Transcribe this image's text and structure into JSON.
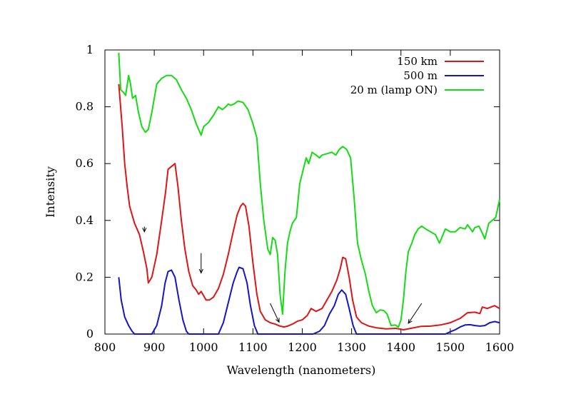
{
  "chart_data": {
    "type": "line",
    "title": "",
    "xlabel": "Wavelength (nanometers)",
    "ylabel": "Intensity",
    "xlim": [
      800,
      1600
    ],
    "ylim": [
      0,
      1
    ],
    "xticks": [
      800,
      900,
      1000,
      1100,
      1200,
      1300,
      1400,
      1500,
      1600
    ],
    "yticks": [
      0,
      0.2,
      0.4,
      0.6,
      0.8,
      1
    ],
    "ytick_labels": [
      "0",
      "0.2",
      "0.4",
      "0.6",
      "0.8",
      "1"
    ],
    "legend_position": "top-right",
    "series": [
      {
        "name": "150 km",
        "color": "#e01414",
        "points": [
          [
            828,
            0.88
          ],
          [
            835,
            0.73
          ],
          [
            840,
            0.6
          ],
          [
            845,
            0.52
          ],
          [
            850,
            0.45
          ],
          [
            855,
            0.42
          ],
          [
            860,
            0.39
          ],
          [
            870,
            0.35
          ],
          [
            878,
            0.29
          ],
          [
            885,
            0.23
          ],
          [
            888,
            0.18
          ],
          [
            895,
            0.2
          ],
          [
            905,
            0.28
          ],
          [
            915,
            0.4
          ],
          [
            923,
            0.5
          ],
          [
            928,
            0.58
          ],
          [
            935,
            0.59
          ],
          [
            942,
            0.6
          ],
          [
            948,
            0.52
          ],
          [
            955,
            0.4
          ],
          [
            962,
            0.3
          ],
          [
            970,
            0.22
          ],
          [
            978,
            0.17
          ],
          [
            985,
            0.155
          ],
          [
            990,
            0.14
          ],
          [
            995,
            0.15
          ],
          [
            1000,
            0.135
          ],
          [
            1005,
            0.12
          ],
          [
            1012,
            0.12
          ],
          [
            1020,
            0.13
          ],
          [
            1030,
            0.16
          ],
          [
            1040,
            0.21
          ],
          [
            1050,
            0.28
          ],
          [
            1060,
            0.36
          ],
          [
            1068,
            0.42
          ],
          [
            1075,
            0.45
          ],
          [
            1080,
            0.46
          ],
          [
            1085,
            0.45
          ],
          [
            1092,
            0.38
          ],
          [
            1100,
            0.25
          ],
          [
            1108,
            0.14
          ],
          [
            1115,
            0.08
          ],
          [
            1125,
            0.05
          ],
          [
            1135,
            0.04
          ],
          [
            1145,
            0.035
          ],
          [
            1155,
            0.028
          ],
          [
            1163,
            0.025
          ],
          [
            1170,
            0.028
          ],
          [
            1180,
            0.035
          ],
          [
            1190,
            0.045
          ],
          [
            1200,
            0.05
          ],
          [
            1210,
            0.065
          ],
          [
            1218,
            0.09
          ],
          [
            1228,
            0.08
          ],
          [
            1240,
            0.09
          ],
          [
            1250,
            0.12
          ],
          [
            1260,
            0.15
          ],
          [
            1270,
            0.19
          ],
          [
            1277,
            0.23
          ],
          [
            1282,
            0.27
          ],
          [
            1288,
            0.265
          ],
          [
            1295,
            0.2
          ],
          [
            1302,
            0.12
          ],
          [
            1310,
            0.06
          ],
          [
            1320,
            0.04
          ],
          [
            1335,
            0.028
          ],
          [
            1350,
            0.022
          ],
          [
            1370,
            0.018
          ],
          [
            1390,
            0.02
          ],
          [
            1405,
            0.015
          ],
          [
            1420,
            0.02
          ],
          [
            1440,
            0.027
          ],
          [
            1460,
            0.028
          ],
          [
            1480,
            0.032
          ],
          [
            1500,
            0.04
          ],
          [
            1520,
            0.055
          ],
          [
            1535,
            0.075
          ],
          [
            1550,
            0.077
          ],
          [
            1560,
            0.072
          ],
          [
            1565,
            0.095
          ],
          [
            1575,
            0.09
          ],
          [
            1590,
            0.1
          ],
          [
            1600,
            0.09
          ]
        ]
      },
      {
        "name": "500 m",
        "color": "#1414c8",
        "points": [
          [
            828,
            0.2
          ],
          [
            833,
            0.12
          ],
          [
            840,
            0.06
          ],
          [
            848,
            0.03
          ],
          [
            855,
            0.01
          ],
          [
            860,
            0.0
          ],
          [
            895,
            0.0
          ],
          [
            905,
            0.03
          ],
          [
            915,
            0.1
          ],
          [
            922,
            0.18
          ],
          [
            928,
            0.22
          ],
          [
            935,
            0.225
          ],
          [
            942,
            0.2
          ],
          [
            950,
            0.12
          ],
          [
            958,
            0.05
          ],
          [
            965,
            0.01
          ],
          [
            970,
            0.0
          ],
          [
            1030,
            0.0
          ],
          [
            1040,
            0.04
          ],
          [
            1050,
            0.11
          ],
          [
            1060,
            0.18
          ],
          [
            1068,
            0.22
          ],
          [
            1072,
            0.235
          ],
          [
            1080,
            0.23
          ],
          [
            1088,
            0.18
          ],
          [
            1095,
            0.1
          ],
          [
            1103,
            0.03
          ],
          [
            1110,
            0.0
          ],
          [
            1210,
            0.0
          ],
          [
            1222,
            0.0
          ],
          [
            1235,
            0.01
          ],
          [
            1245,
            0.03
          ],
          [
            1255,
            0.07
          ],
          [
            1265,
            0.1
          ],
          [
            1273,
            0.14
          ],
          [
            1280,
            0.155
          ],
          [
            1288,
            0.14
          ],
          [
            1295,
            0.09
          ],
          [
            1303,
            0.03
          ],
          [
            1310,
            0.0
          ],
          [
            1490,
            0.0
          ],
          [
            1500,
            0.008
          ],
          [
            1510,
            0.015
          ],
          [
            1520,
            0.025
          ],
          [
            1530,
            0.032
          ],
          [
            1540,
            0.033
          ],
          [
            1550,
            0.03
          ],
          [
            1560,
            0.028
          ],
          [
            1570,
            0.03
          ],
          [
            1580,
            0.04
          ],
          [
            1590,
            0.044
          ],
          [
            1600,
            0.04
          ]
        ]
      },
      {
        "name": "20 m (lamp ON)",
        "color": "#14dc14",
        "points": [
          [
            828,
            0.99
          ],
          [
            832,
            0.86
          ],
          [
            838,
            0.85
          ],
          [
            842,
            0.84
          ],
          [
            848,
            0.91
          ],
          [
            852,
            0.88
          ],
          [
            856,
            0.83
          ],
          [
            862,
            0.84
          ],
          [
            868,
            0.78
          ],
          [
            875,
            0.73
          ],
          [
            882,
            0.71
          ],
          [
            888,
            0.72
          ],
          [
            895,
            0.78
          ],
          [
            905,
            0.88
          ],
          [
            915,
            0.9
          ],
          [
            925,
            0.91
          ],
          [
            935,
            0.91
          ],
          [
            945,
            0.895
          ],
          [
            955,
            0.86
          ],
          [
            965,
            0.83
          ],
          [
            975,
            0.79
          ],
          [
            985,
            0.74
          ],
          [
            990,
            0.72
          ],
          [
            995,
            0.7
          ],
          [
            1000,
            0.73
          ],
          [
            1010,
            0.745
          ],
          [
            1020,
            0.77
          ],
          [
            1030,
            0.8
          ],
          [
            1038,
            0.79
          ],
          [
            1045,
            0.8
          ],
          [
            1050,
            0.81
          ],
          [
            1055,
            0.805
          ],
          [
            1062,
            0.81
          ],
          [
            1070,
            0.82
          ],
          [
            1080,
            0.815
          ],
          [
            1090,
            0.79
          ],
          [
            1100,
            0.74
          ],
          [
            1108,
            0.69
          ],
          [
            1115,
            0.53
          ],
          [
            1122,
            0.4
          ],
          [
            1130,
            0.3
          ],
          [
            1135,
            0.28
          ],
          [
            1140,
            0.34
          ],
          [
            1145,
            0.33
          ],
          [
            1150,
            0.28
          ],
          [
            1155,
            0.14
          ],
          [
            1160,
            0.07
          ],
          [
            1165,
            0.22
          ],
          [
            1170,
            0.32
          ],
          [
            1175,
            0.36
          ],
          [
            1180,
            0.39
          ],
          [
            1188,
            0.41
          ],
          [
            1195,
            0.53
          ],
          [
            1202,
            0.58
          ],
          [
            1208,
            0.62
          ],
          [
            1213,
            0.6
          ],
          [
            1220,
            0.64
          ],
          [
            1228,
            0.63
          ],
          [
            1235,
            0.62
          ],
          [
            1240,
            0.63
          ],
          [
            1250,
            0.635
          ],
          [
            1260,
            0.64
          ],
          [
            1268,
            0.63
          ],
          [
            1275,
            0.65
          ],
          [
            1282,
            0.66
          ],
          [
            1290,
            0.65
          ],
          [
            1298,
            0.62
          ],
          [
            1305,
            0.48
          ],
          [
            1312,
            0.32
          ],
          [
            1320,
            0.26
          ],
          [
            1328,
            0.21
          ],
          [
            1335,
            0.15
          ],
          [
            1342,
            0.1
          ],
          [
            1350,
            0.075
          ],
          [
            1358,
            0.085
          ],
          [
            1365,
            0.083
          ],
          [
            1372,
            0.07
          ],
          [
            1380,
            0.03
          ],
          [
            1388,
            0.032
          ],
          [
            1395,
            0.025
          ],
          [
            1400,
            0.05
          ],
          [
            1405,
            0.12
          ],
          [
            1410,
            0.22
          ],
          [
            1415,
            0.29
          ],
          [
            1422,
            0.32
          ],
          [
            1428,
            0.35
          ],
          [
            1435,
            0.37
          ],
          [
            1442,
            0.38
          ],
          [
            1450,
            0.37
          ],
          [
            1460,
            0.36
          ],
          [
            1470,
            0.35
          ],
          [
            1478,
            0.32
          ],
          [
            1490,
            0.37
          ],
          [
            1500,
            0.36
          ],
          [
            1510,
            0.36
          ],
          [
            1520,
            0.375
          ],
          [
            1530,
            0.37
          ],
          [
            1535,
            0.385
          ],
          [
            1545,
            0.36
          ],
          [
            1550,
            0.375
          ],
          [
            1558,
            0.38
          ],
          [
            1565,
            0.355
          ],
          [
            1570,
            0.335
          ],
          [
            1578,
            0.39
          ],
          [
            1585,
            0.4
          ],
          [
            1592,
            0.41
          ],
          [
            1600,
            0.475
          ]
        ]
      }
    ],
    "annotations": [
      {
        "type": "arrow",
        "from": [
          880,
          0.378
        ],
        "to": [
          880,
          0.36
        ]
      },
      {
        "type": "arrow",
        "from": [
          995,
          0.285
        ],
        "to": [
          995,
          0.215
        ]
      },
      {
        "type": "arrow",
        "from": [
          1135,
          0.108
        ],
        "to": [
          1153,
          0.042
        ]
      },
      {
        "type": "arrow",
        "from": [
          1442,
          0.108
        ],
        "to": [
          1415,
          0.038
        ]
      }
    ]
  }
}
